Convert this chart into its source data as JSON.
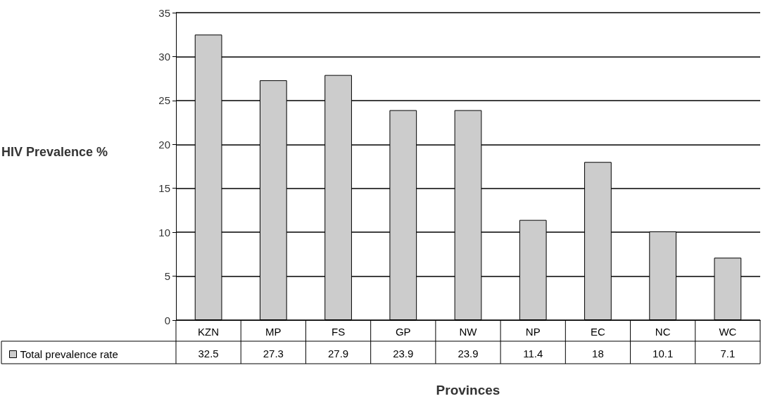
{
  "chart_data": {
    "type": "bar",
    "xlabel": "Provinces",
    "ylabel": "HIV Prevalence %",
    "categories": [
      "KZN",
      "MP",
      "FS",
      "GP",
      "NW",
      "NP",
      "EC",
      "NC",
      "WC"
    ],
    "series": [
      {
        "name": "Total prevalence rate",
        "color": "#cccccc",
        "values": [
          32.5,
          27.3,
          27.9,
          23.9,
          23.9,
          11.4,
          18,
          10.1,
          7.1
        ]
      }
    ],
    "ylim": [
      0,
      35
    ],
    "yticks": [
      0,
      5,
      10,
      15,
      20,
      25,
      30,
      35
    ],
    "grid": "y",
    "legend": "bottom left",
    "data_labels": true
  }
}
